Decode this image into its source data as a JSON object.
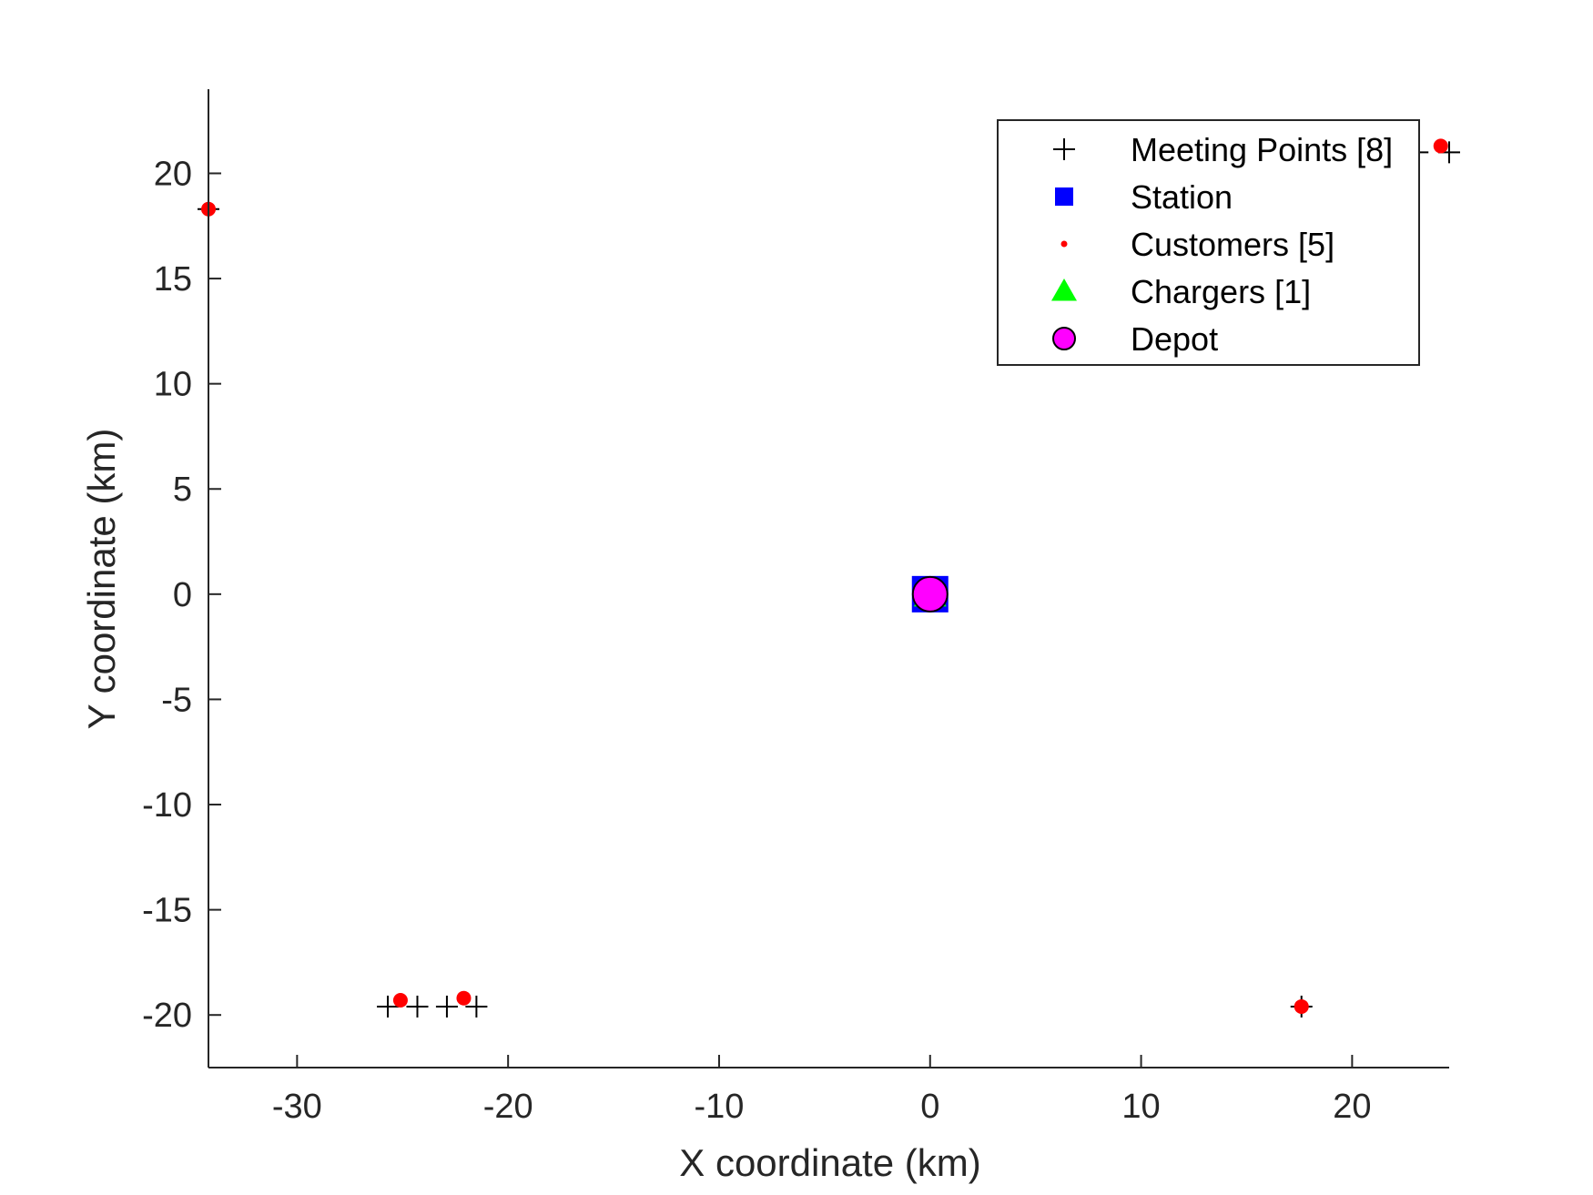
{
  "chart_data": {
    "type": "scatter",
    "xlabel": "X coordinate (km)",
    "ylabel": "Y coordinate (km)",
    "xlim": [
      -34.2,
      24.6
    ],
    "ylim": [
      -22.5,
      24
    ],
    "xticks": [
      -30,
      -20,
      -10,
      0,
      10,
      20
    ],
    "yticks": [
      -20,
      -15,
      -10,
      -5,
      0,
      5,
      10,
      15,
      20
    ],
    "xtick_labels": [
      "-30",
      "-20",
      "-10",
      "0",
      "10",
      "20"
    ],
    "ytick_labels": [
      "-20",
      "-15",
      "-10",
      "-5",
      "0",
      "5",
      "10",
      "15",
      "20"
    ],
    "grid": false,
    "legend_position": "top-right",
    "series": [
      {
        "name": "Meeting Points [8]",
        "marker": "plus",
        "color": "#000000",
        "points": [
          [
            -25.7,
            -19.6
          ],
          [
            -24.3,
            -19.6
          ],
          [
            -22.9,
            -19.6
          ],
          [
            -21.5,
            -19.6
          ],
          [
            17.6,
            -19.6
          ],
          [
            -34.2,
            18.3
          ],
          [
            23.1,
            21.0
          ],
          [
            24.6,
            21.0
          ]
        ]
      },
      {
        "name": "Station",
        "marker": "square",
        "color": "#0000ff",
        "points": [
          [
            0,
            0
          ]
        ]
      },
      {
        "name": "Customers [5]",
        "marker": "dot",
        "color": "#ff0000",
        "points": [
          [
            -25.1,
            -19.3
          ],
          [
            -22.1,
            -19.2
          ],
          [
            17.6,
            -19.6
          ],
          [
            -34.2,
            18.3
          ],
          [
            24.2,
            21.3
          ]
        ]
      },
      {
        "name": "Chargers [1]",
        "marker": "triangle",
        "color": "#00ff00",
        "points": [
          [
            0,
            0
          ]
        ]
      },
      {
        "name": "Depot",
        "marker": "circle",
        "color": "#ff00ff",
        "points": [
          [
            0,
            0
          ]
        ]
      }
    ]
  }
}
